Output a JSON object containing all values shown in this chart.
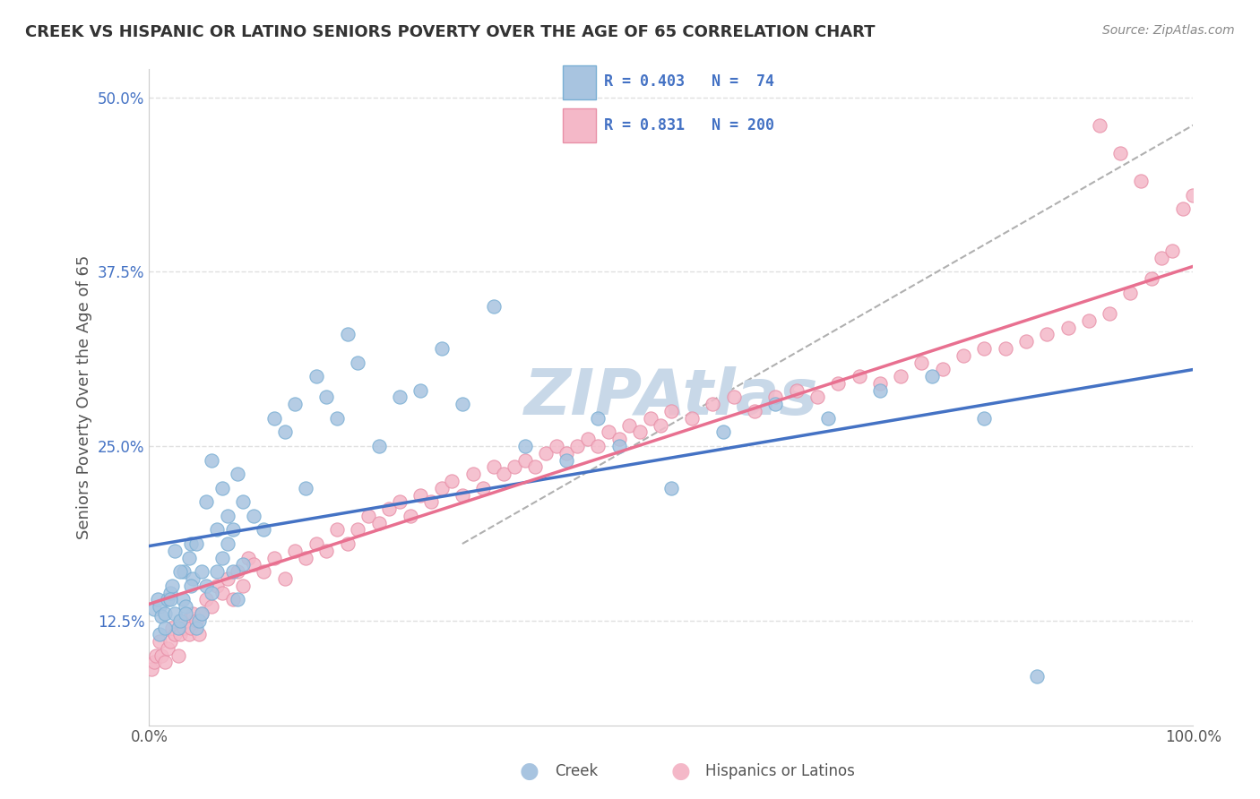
{
  "title": "CREEK VS HISPANIC OR LATINO SENIORS POVERTY OVER THE AGE OF 65 CORRELATION CHART",
  "source": "Source: ZipAtlas.com",
  "xlabel": "",
  "ylabel": "Seniors Poverty Over the Age of 65",
  "xlim": [
    0,
    1.0
  ],
  "ylim": [
    0.05,
    0.52
  ],
  "xticks": [
    0.0,
    1.0
  ],
  "xticklabels": [
    "0.0%",
    "100.0%"
  ],
  "yticks": [
    0.125,
    0.25,
    0.375,
    0.5
  ],
  "yticklabels": [
    "12.5%",
    "25.0%",
    "37.5%",
    "50.0%"
  ],
  "creek_R": 0.403,
  "creek_N": 74,
  "hispanic_R": 0.831,
  "hispanic_N": 200,
  "creek_color": "#a8c4e0",
  "creek_edge_color": "#7aafd4",
  "hispanic_color": "#f4b8c8",
  "hispanic_edge_color": "#e890a8",
  "regression_line_color_gray": "#b0b0b0",
  "creek_line_color": "#4472c4",
  "hispanic_line_color": "#e87090",
  "legend_text_color": "#4472c4",
  "watermark_color": "#c8d8e8",
  "background_color": "#ffffff",
  "grid_color": "#e0e0e0",
  "creek_scatter": {
    "x": [
      0.005,
      0.008,
      0.01,
      0.012,
      0.015,
      0.018,
      0.02,
      0.022,
      0.025,
      0.028,
      0.03,
      0.032,
      0.033,
      0.035,
      0.038,
      0.04,
      0.042,
      0.045,
      0.048,
      0.05,
      0.055,
      0.06,
      0.065,
      0.07,
      0.075,
      0.08,
      0.085,
      0.09,
      0.01,
      0.015,
      0.02,
      0.025,
      0.03,
      0.035,
      0.04,
      0.045,
      0.05,
      0.055,
      0.06,
      0.065,
      0.07,
      0.075,
      0.08,
      0.085,
      0.09,
      0.1,
      0.11,
      0.12,
      0.13,
      0.14,
      0.15,
      0.16,
      0.17,
      0.18,
      0.19,
      0.2,
      0.22,
      0.24,
      0.26,
      0.28,
      0.3,
      0.33,
      0.36,
      0.4,
      0.43,
      0.45,
      0.5,
      0.55,
      0.6,
      0.65,
      0.7,
      0.75,
      0.8,
      0.85
    ],
    "y": [
      0.133,
      0.14,
      0.135,
      0.128,
      0.13,
      0.14,
      0.145,
      0.15,
      0.13,
      0.12,
      0.125,
      0.14,
      0.16,
      0.135,
      0.17,
      0.18,
      0.155,
      0.12,
      0.125,
      0.13,
      0.15,
      0.145,
      0.16,
      0.17,
      0.2,
      0.19,
      0.14,
      0.165,
      0.115,
      0.12,
      0.14,
      0.175,
      0.16,
      0.13,
      0.15,
      0.18,
      0.16,
      0.21,
      0.24,
      0.19,
      0.22,
      0.18,
      0.16,
      0.23,
      0.21,
      0.2,
      0.19,
      0.27,
      0.26,
      0.28,
      0.22,
      0.3,
      0.285,
      0.27,
      0.33,
      0.31,
      0.25,
      0.285,
      0.29,
      0.32,
      0.28,
      0.35,
      0.25,
      0.24,
      0.27,
      0.25,
      0.22,
      0.26,
      0.28,
      0.27,
      0.29,
      0.3,
      0.27,
      0.085
    ]
  },
  "hispanic_scatter": {
    "x": [
      0.002,
      0.005,
      0.007,
      0.01,
      0.012,
      0.015,
      0.018,
      0.02,
      0.022,
      0.025,
      0.028,
      0.03,
      0.033,
      0.035,
      0.038,
      0.04,
      0.042,
      0.045,
      0.048,
      0.05,
      0.055,
      0.06,
      0.065,
      0.07,
      0.075,
      0.08,
      0.085,
      0.09,
      0.095,
      0.1,
      0.11,
      0.12,
      0.13,
      0.14,
      0.15,
      0.16,
      0.17,
      0.18,
      0.19,
      0.2,
      0.21,
      0.22,
      0.23,
      0.24,
      0.25,
      0.26,
      0.27,
      0.28,
      0.29,
      0.3,
      0.31,
      0.32,
      0.33,
      0.34,
      0.35,
      0.36,
      0.37,
      0.38,
      0.39,
      0.4,
      0.41,
      0.42,
      0.43,
      0.44,
      0.45,
      0.46,
      0.47,
      0.48,
      0.49,
      0.5,
      0.52,
      0.54,
      0.56,
      0.58,
      0.6,
      0.62,
      0.64,
      0.66,
      0.68,
      0.7,
      0.72,
      0.74,
      0.76,
      0.78,
      0.8,
      0.82,
      0.84,
      0.86,
      0.88,
      0.9,
      0.92,
      0.94,
      0.96,
      0.97,
      0.98,
      0.99,
      1.0,
      0.95,
      0.93,
      0.91
    ],
    "y": [
      0.09,
      0.095,
      0.1,
      0.11,
      0.1,
      0.095,
      0.105,
      0.11,
      0.12,
      0.115,
      0.1,
      0.115,
      0.12,
      0.125,
      0.115,
      0.12,
      0.13,
      0.125,
      0.115,
      0.13,
      0.14,
      0.135,
      0.15,
      0.145,
      0.155,
      0.14,
      0.16,
      0.15,
      0.17,
      0.165,
      0.16,
      0.17,
      0.155,
      0.175,
      0.17,
      0.18,
      0.175,
      0.19,
      0.18,
      0.19,
      0.2,
      0.195,
      0.205,
      0.21,
      0.2,
      0.215,
      0.21,
      0.22,
      0.225,
      0.215,
      0.23,
      0.22,
      0.235,
      0.23,
      0.235,
      0.24,
      0.235,
      0.245,
      0.25,
      0.245,
      0.25,
      0.255,
      0.25,
      0.26,
      0.255,
      0.265,
      0.26,
      0.27,
      0.265,
      0.275,
      0.27,
      0.28,
      0.285,
      0.275,
      0.285,
      0.29,
      0.285,
      0.295,
      0.3,
      0.295,
      0.3,
      0.31,
      0.305,
      0.315,
      0.32,
      0.32,
      0.325,
      0.33,
      0.335,
      0.34,
      0.345,
      0.36,
      0.37,
      0.385,
      0.39,
      0.42,
      0.43,
      0.44,
      0.46,
      0.48
    ]
  }
}
